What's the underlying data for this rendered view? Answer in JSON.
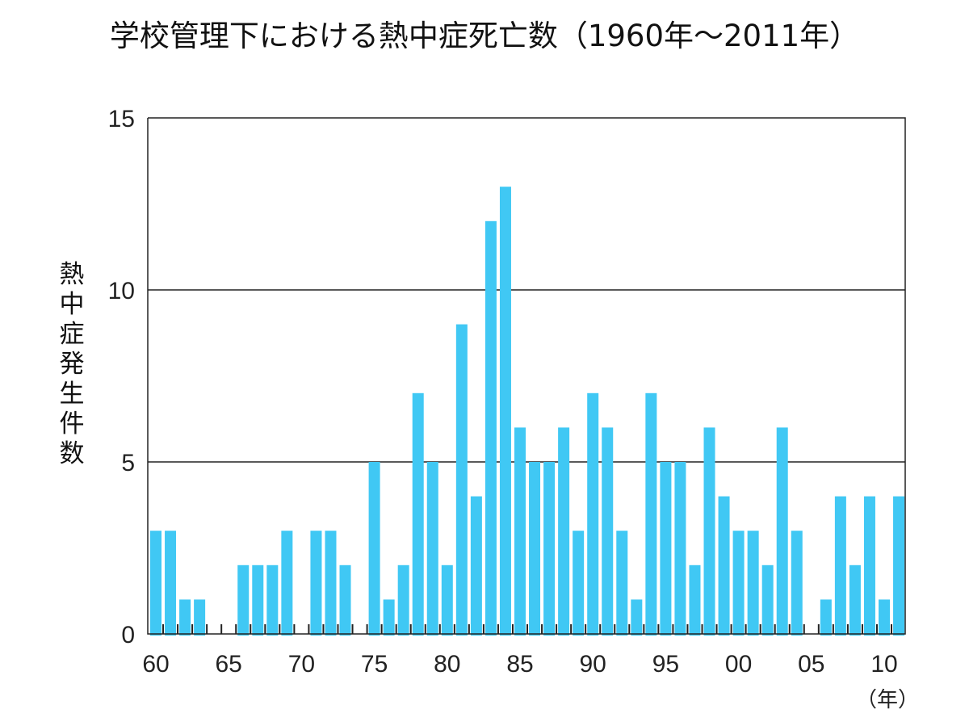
{
  "chart_data": {
    "type": "bar",
    "title": "学校管理下における熱中症死亡数（1960年～2011年）",
    "xlabel": "（年）",
    "ylabel": "熱中症発生件数",
    "ylim": [
      0,
      15
    ],
    "yticks": [
      "0",
      "5",
      "10",
      "15"
    ],
    "grid": "horizontal at 5 and 10",
    "bar_color": "#40c8f4",
    "x": [
      1960,
      1961,
      1962,
      1963,
      1964,
      1965,
      1966,
      1967,
      1968,
      1969,
      1970,
      1971,
      1972,
      1973,
      1974,
      1975,
      1976,
      1977,
      1978,
      1979,
      1980,
      1981,
      1982,
      1983,
      1984,
      1985,
      1986,
      1987,
      1988,
      1989,
      1990,
      1991,
      1992,
      1993,
      1994,
      1995,
      1996,
      1997,
      1998,
      1999,
      2000,
      2001,
      2002,
      2003,
      2004,
      2005,
      2006,
      2007,
      2008,
      2009,
      2010,
      2011
    ],
    "values": [
      3,
      3,
      1,
      1,
      0,
      0,
      2,
      2,
      2,
      3,
      0,
      3,
      3,
      2,
      0,
      5,
      1,
      2,
      7,
      5,
      2,
      9,
      4,
      12,
      13,
      6,
      5,
      5,
      6,
      3,
      7,
      6,
      3,
      1,
      7,
      5,
      5,
      2,
      6,
      4,
      3,
      3,
      2,
      6,
      3,
      0,
      1,
      4,
      2,
      4,
      1,
      4
    ],
    "xtick_labels": [
      "60",
      "65",
      "70",
      "75",
      "80",
      "85",
      "90",
      "95",
      "00",
      "05",
      "10"
    ]
  }
}
